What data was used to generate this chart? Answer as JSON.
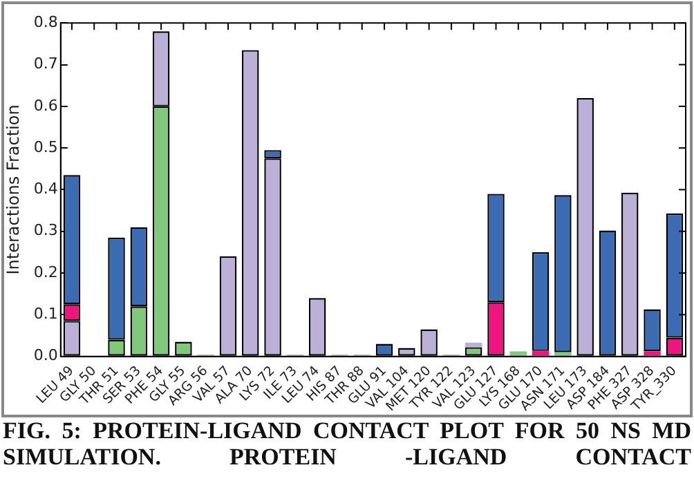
{
  "chart_data": {
    "type": "bar",
    "stacked": true,
    "ylabel": "Interactions Fraction",
    "categories": [
      "LEU 49",
      "GLY 50",
      "THR 51",
      "SER 53",
      "PHE 54",
      "GLY 55",
      "ARG 56",
      "VAL 57",
      "ALA 70",
      "LYS 72",
      "ILE 73",
      "LEU 74",
      "HIS 87",
      "THR 88",
      "GLU 91",
      "VAL 104",
      "MET 120",
      "TYR 122",
      "VAL 123",
      "GLU 127",
      "LYS 168",
      "GLU 170",
      "ASN 171",
      "LEU 173",
      "ASP 184",
      "PHE 327",
      "ASP 328",
      "TYR_330"
    ],
    "series": [
      {
        "color": "#80c97a",
        "values": [
          null,
          null,
          0.04,
          0.12,
          0.6,
          0.035,
          0.004,
          null,
          null,
          null,
          0.004,
          null,
          0.004,
          0.004,
          null,
          null,
          null,
          0.004,
          0.022,
          null,
          0.012,
          null,
          0.01,
          null,
          null,
          null,
          null,
          null
        ]
      },
      {
        "color": "#bdb0d8",
        "values": [
          0.085,
          null,
          null,
          null,
          0.18,
          null,
          null,
          0.24,
          0.735,
          0.475,
          null,
          0.14,
          null,
          null,
          null,
          0.02,
          0.065,
          null,
          0.011,
          null,
          null,
          null,
          null,
          0.62,
          null,
          0.393,
          null,
          null
        ]
      },
      {
        "color": "#ef1480",
        "values": [
          0.04,
          null,
          null,
          null,
          null,
          null,
          null,
          null,
          null,
          null,
          null,
          null,
          null,
          null,
          null,
          null,
          null,
          null,
          null,
          0.13,
          null,
          0.013,
          null,
          null,
          null,
          null,
          0.012,
          0.045
        ]
      },
      {
        "color": "#3b6cb3",
        "values": [
          0.31,
          null,
          0.245,
          0.19,
          null,
          null,
          null,
          null,
          null,
          0.02,
          null,
          null,
          null,
          null,
          0.03,
          null,
          null,
          null,
          null,
          0.26,
          null,
          0.237,
          0.377,
          null,
          0.302,
          null,
          0.101,
          0.298
        ]
      }
    ],
    "ylim": [
      0,
      0.8
    ],
    "yticks": [
      {
        "value": 0,
        "label": "0.0"
      },
      {
        "value": 0.1,
        "label": "0.1"
      },
      {
        "value": 0.2,
        "label": "0.2"
      },
      {
        "value": 0.3,
        "label": "0.3"
      },
      {
        "value": 0.4,
        "label": "0.4"
      },
      {
        "value": 0.5,
        "label": "0.5"
      },
      {
        "value": 0.6,
        "label": "0.6"
      },
      {
        "value": 0.7,
        "label": "0.7"
      },
      {
        "value": 0.8,
        "label": "0.8"
      }
    ],
    "grid": false,
    "annotations": [
      "FIG. 5: PROTEIN-LIGAND CONTACT PLOT FOR 50 NS MD SIMULATION. PROTEIN -LIGAND CONTACT"
    ]
  }
}
